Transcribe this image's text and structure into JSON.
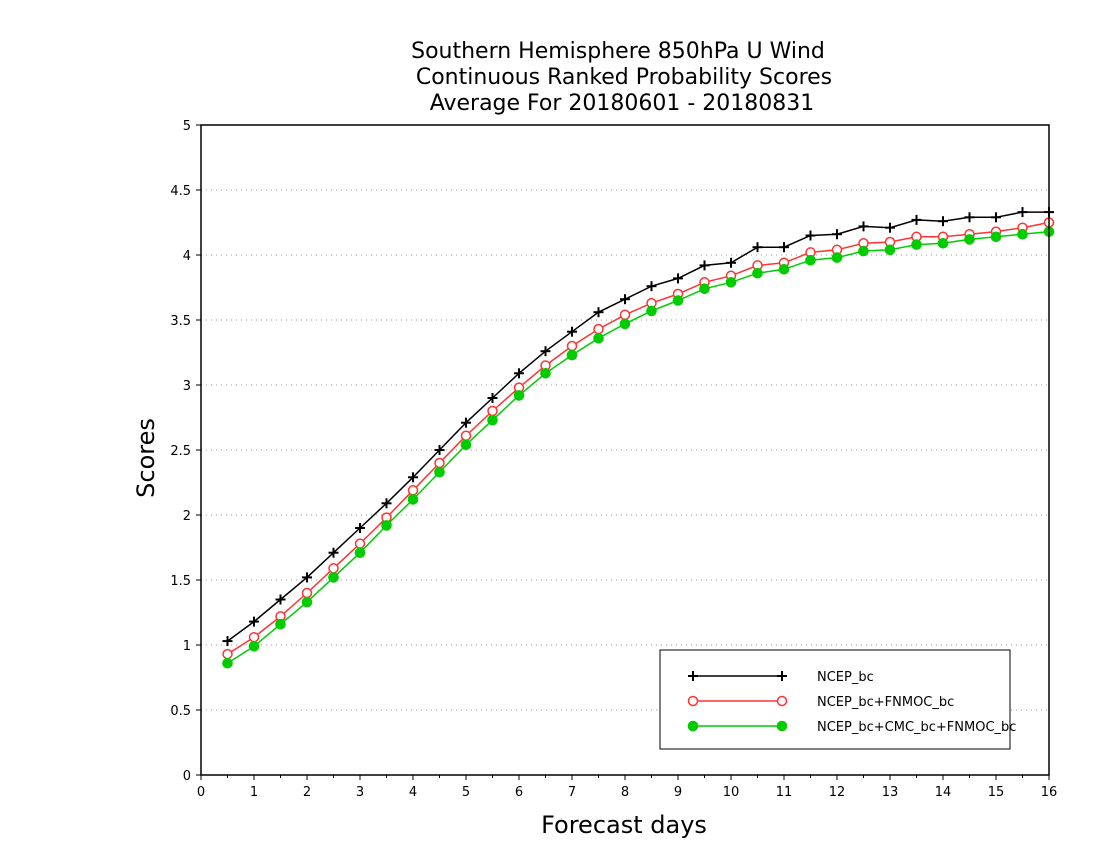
{
  "chart_data": {
    "type": "line",
    "title_lines": [
      "Southern Hemisphere 850hPa U Wind",
      "Continuous Ranked Probability Scores",
      "Average For 20180601 - 20180831"
    ],
    "xlabel": "Forecast days",
    "ylabel": "Scores",
    "xlim": [
      0,
      16
    ],
    "ylim": [
      0,
      5
    ],
    "xticks": [
      "0",
      "1",
      "2",
      "3",
      "4",
      "5",
      "6",
      "7",
      "8",
      "9",
      "10",
      "11",
      "12",
      "13",
      "14",
      "15",
      "16"
    ],
    "yticks": [
      "0",
      "0.5",
      "1",
      "1.5",
      "2",
      "2.5",
      "3",
      "3.5",
      "4",
      "4.5",
      "5"
    ],
    "grid": "horizontal dotted",
    "legend_position": "lower-right",
    "x": [
      0.5,
      1,
      1.5,
      2,
      2.5,
      3,
      3.5,
      4,
      4.5,
      5,
      5.5,
      6,
      6.5,
      7,
      7.5,
      8,
      8.5,
      9,
      9.5,
      10,
      10.5,
      11,
      11.5,
      12,
      12.5,
      13,
      13.5,
      14,
      14.5,
      15,
      15.5,
      16
    ],
    "series": [
      {
        "name": "NCEP_bc",
        "color": "#000000",
        "marker": "plus",
        "values": [
          1.03,
          1.18,
          1.35,
          1.52,
          1.71,
          1.9,
          2.09,
          2.29,
          2.5,
          2.71,
          2.9,
          3.09,
          3.26,
          3.41,
          3.56,
          3.66,
          3.76,
          3.82,
          3.92,
          3.94,
          4.06,
          4.06,
          4.15,
          4.16,
          4.22,
          4.21,
          4.27,
          4.26,
          4.29,
          4.29,
          4.33,
          4.33
        ]
      },
      {
        "name": "NCEP_bc+FNMOC_bc",
        "color": "#ff3333",
        "marker": "open-circle",
        "values": [
          0.93,
          1.06,
          1.22,
          1.4,
          1.59,
          1.78,
          1.98,
          2.19,
          2.4,
          2.61,
          2.8,
          2.98,
          3.15,
          3.3,
          3.43,
          3.54,
          3.63,
          3.7,
          3.79,
          3.84,
          3.92,
          3.94,
          4.02,
          4.04,
          4.09,
          4.1,
          4.14,
          4.14,
          4.16,
          4.18,
          4.21,
          4.25
        ]
      },
      {
        "name": "NCEP_bc+CMC_bc+FNMOC_bc",
        "color": "#00cc00",
        "marker": "filled-circle",
        "values": [
          0.86,
          0.99,
          1.16,
          1.33,
          1.52,
          1.71,
          1.92,
          2.12,
          2.33,
          2.54,
          2.73,
          2.92,
          3.09,
          3.23,
          3.36,
          3.47,
          3.57,
          3.65,
          3.74,
          3.79,
          3.86,
          3.89,
          3.96,
          3.98,
          4.03,
          4.04,
          4.08,
          4.09,
          4.12,
          4.14,
          4.16,
          4.18
        ]
      }
    ]
  }
}
